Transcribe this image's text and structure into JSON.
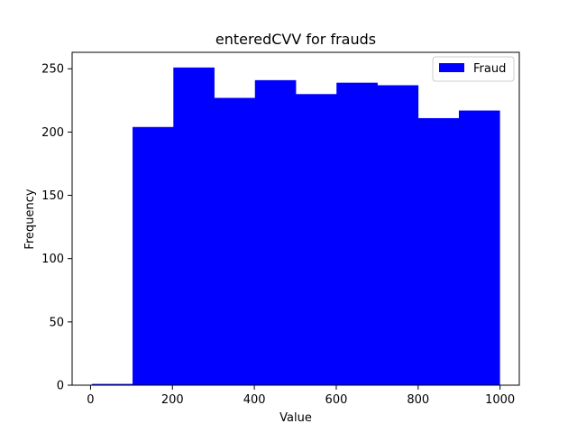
{
  "chart_data": {
    "type": "bar",
    "title": "enteredCVV for frauds",
    "xlabel": "Value",
    "ylabel": "Frequency",
    "bin_edges": [
      3,
      102.6,
      202.2,
      301.8,
      401.4,
      501,
      600.6,
      700.2,
      799.8,
      899.4,
      999
    ],
    "series": [
      {
        "name": "Fraud",
        "color": "#0000ff",
        "values": [
          1,
          204,
          251,
          227,
          241,
          230,
          239,
          237,
          211,
          217
        ]
      }
    ],
    "xlim": [
      -45,
      1047
    ],
    "ylim": [
      0,
      263
    ],
    "xticks": [
      0,
      200,
      400,
      600,
      800,
      1000
    ],
    "yticks": [
      0,
      50,
      100,
      150,
      200,
      250
    ],
    "grid": false,
    "legend_position": "top-right"
  }
}
